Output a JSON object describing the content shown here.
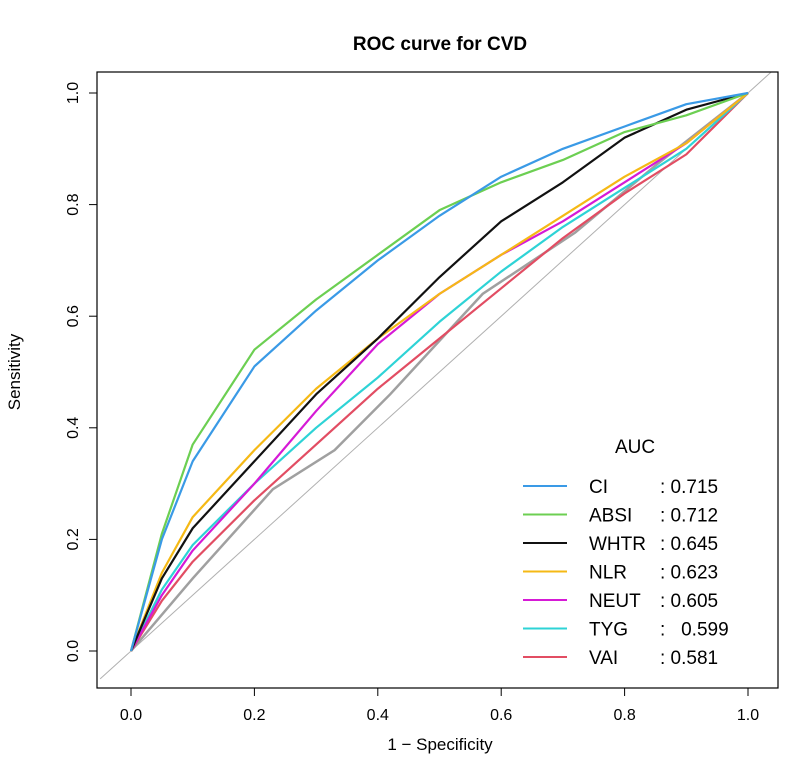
{
  "chart_data": {
    "type": "line",
    "title": "ROC curve for CVD",
    "xlabel": "1 − Specificity",
    "ylabel": "Sensitivity",
    "xlim": [
      0,
      1
    ],
    "ylim": [
      0,
      1
    ],
    "x_ticks": [
      "0.0",
      "0.2",
      "0.4",
      "0.6",
      "0.8",
      "1.0"
    ],
    "y_ticks": [
      "0.0",
      "0.2",
      "0.4",
      "0.6",
      "0.8",
      "1.0"
    ],
    "grid": false,
    "legend": {
      "title": "AUC",
      "placement": "bottom-right"
    },
    "x": [
      0,
      0.05,
      0.1,
      0.2,
      0.3,
      0.4,
      0.5,
      0.6,
      0.7,
      0.8,
      0.9,
      1.0
    ],
    "series": [
      {
        "name": "CI",
        "auc": ": 0.715",
        "color": "#3a9ae6",
        "values": [
          0,
          0.2,
          0.34,
          0.51,
          0.61,
          0.7,
          0.78,
          0.85,
          0.9,
          0.94,
          0.98,
          1.0
        ]
      },
      {
        "name": "ABSI",
        "auc": ": 0.712",
        "color": "#6ccf52",
        "values": [
          0,
          0.21,
          0.37,
          0.54,
          0.63,
          0.71,
          0.79,
          0.84,
          0.88,
          0.93,
          0.96,
          1.0
        ]
      },
      {
        "name": "WHTR",
        "auc": ": 0.645",
        "color": "#111111",
        "values": [
          0,
          0.13,
          0.22,
          0.34,
          0.46,
          0.56,
          0.67,
          0.77,
          0.84,
          0.92,
          0.97,
          1.0
        ]
      },
      {
        "name": "NLR",
        "auc": ": 0.623",
        "color": "#f5b915",
        "values": [
          0,
          0.14,
          0.24,
          0.36,
          0.47,
          0.56,
          0.64,
          0.71,
          0.78,
          0.85,
          0.91,
          1.0
        ]
      },
      {
        "name": "NEUT",
        "auc": ": 0.605",
        "color": "#d61ad6",
        "values": [
          0,
          0.1,
          0.18,
          0.3,
          0.43,
          0.55,
          0.64,
          0.71,
          0.77,
          0.84,
          0.91,
          1.0
        ]
      },
      {
        "name": "TYG",
        "auc": ":   0.599",
        "color": "#2ed3d6",
        "values": [
          0,
          0.11,
          0.19,
          0.3,
          0.4,
          0.49,
          0.59,
          0.68,
          0.76,
          0.83,
          0.9,
          1.0
        ]
      },
      {
        "name": "VAI",
        "auc": ": 0.581",
        "color": "#e24d63",
        "values": [
          0,
          0.09,
          0.16,
          0.27,
          0.37,
          0.47,
          0.56,
          0.65,
          0.74,
          0.82,
          0.89,
          1.0
        ]
      }
    ],
    "unlabeled_series": [
      {
        "color": "#a0a0a0",
        "points": [
          [
            0,
            0
          ],
          [
            0.1,
            0.13
          ],
          [
            0.23,
            0.29
          ],
          [
            0.33,
            0.36
          ],
          [
            0.42,
            0.46
          ],
          [
            0.57,
            0.64
          ],
          [
            0.72,
            0.75
          ],
          [
            0.85,
            0.87
          ],
          [
            1,
            1
          ]
        ]
      }
    ],
    "reference_line": {
      "color": "#b0b0b0",
      "points": [
        [
          -0.05,
          -0.05
        ],
        [
          1.05,
          1.05
        ]
      ]
    }
  }
}
